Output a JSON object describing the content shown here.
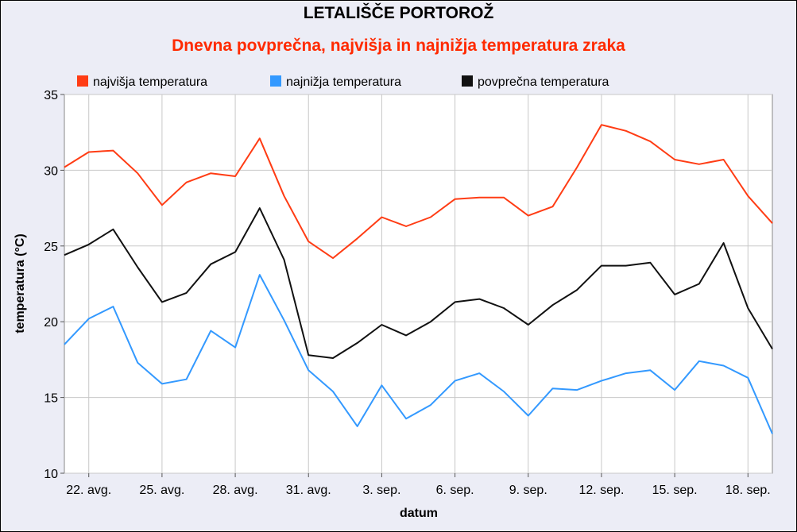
{
  "chart_data": {
    "type": "line",
    "title": "LETALIŠČE PORTOROŽ",
    "subtitle": "Dnevna povprečna, najvišja in najnižja  temperatura zraka",
    "xlabel": "datum",
    "ylabel": "temperatura (°C)",
    "ylim": [
      10,
      35
    ],
    "yticks": [
      10,
      15,
      20,
      25,
      30,
      35
    ],
    "grid": true,
    "legend_position": "top",
    "x": [
      "21. avg.",
      "22. avg.",
      "23. avg.",
      "24. avg.",
      "25. avg.",
      "26. avg.",
      "27. avg.",
      "28. avg.",
      "29. avg.",
      "30. avg.",
      "31. avg.",
      "1. sep.",
      "2. sep.",
      "3. sep.",
      "4. sep.",
      "5. sep.",
      "6. sep.",
      "7. sep.",
      "8. sep.",
      "9. sep.",
      "10. sep.",
      "11. sep.",
      "12. sep.",
      "13. sep.",
      "14. sep.",
      "15. sep.",
      "16. sep.",
      "17. sep.",
      "18. sep.",
      "19. sep."
    ],
    "xtick_labels": [
      "22. avg.",
      "25. avg.",
      "28. avg.",
      "31. avg.",
      "3. sep.",
      "6. sep.",
      "9. sep.",
      "12. sep.",
      "15. sep.",
      "18. sep."
    ],
    "series": [
      {
        "name": "najvišja temperatura",
        "color": "#ff3c14",
        "values": [
          30.2,
          31.2,
          31.3,
          29.8,
          27.7,
          29.2,
          29.8,
          29.6,
          32.1,
          28.3,
          25.3,
          24.2,
          25.5,
          26.9,
          26.3,
          26.9,
          28.1,
          28.2,
          28.2,
          27.0,
          27.6,
          30.2,
          33.0,
          32.6,
          31.9,
          30.7,
          30.4,
          30.7,
          28.3,
          26.5
        ]
      },
      {
        "name": "najnižja temperatura",
        "color": "#3399ff",
        "values": [
          18.5,
          20.2,
          21.0,
          17.3,
          15.9,
          16.2,
          19.4,
          18.3,
          23.1,
          20.1,
          16.8,
          15.4,
          13.1,
          15.8,
          13.6,
          14.5,
          16.1,
          16.6,
          15.4,
          13.8,
          15.6,
          15.5,
          16.1,
          16.6,
          16.8,
          15.5,
          17.4,
          17.1,
          16.3,
          12.6
        ]
      },
      {
        "name": "povprečna temperatura",
        "color": "#111111",
        "values": [
          24.4,
          25.1,
          26.1,
          23.6,
          21.3,
          21.9,
          23.8,
          24.6,
          27.5,
          24.1,
          17.8,
          17.6,
          18.6,
          19.8,
          19.1,
          20.0,
          21.3,
          21.5,
          20.9,
          19.8,
          21.1,
          22.1,
          23.7,
          23.7,
          23.9,
          21.8,
          22.5,
          25.2,
          20.9,
          18.2
        ]
      }
    ]
  }
}
